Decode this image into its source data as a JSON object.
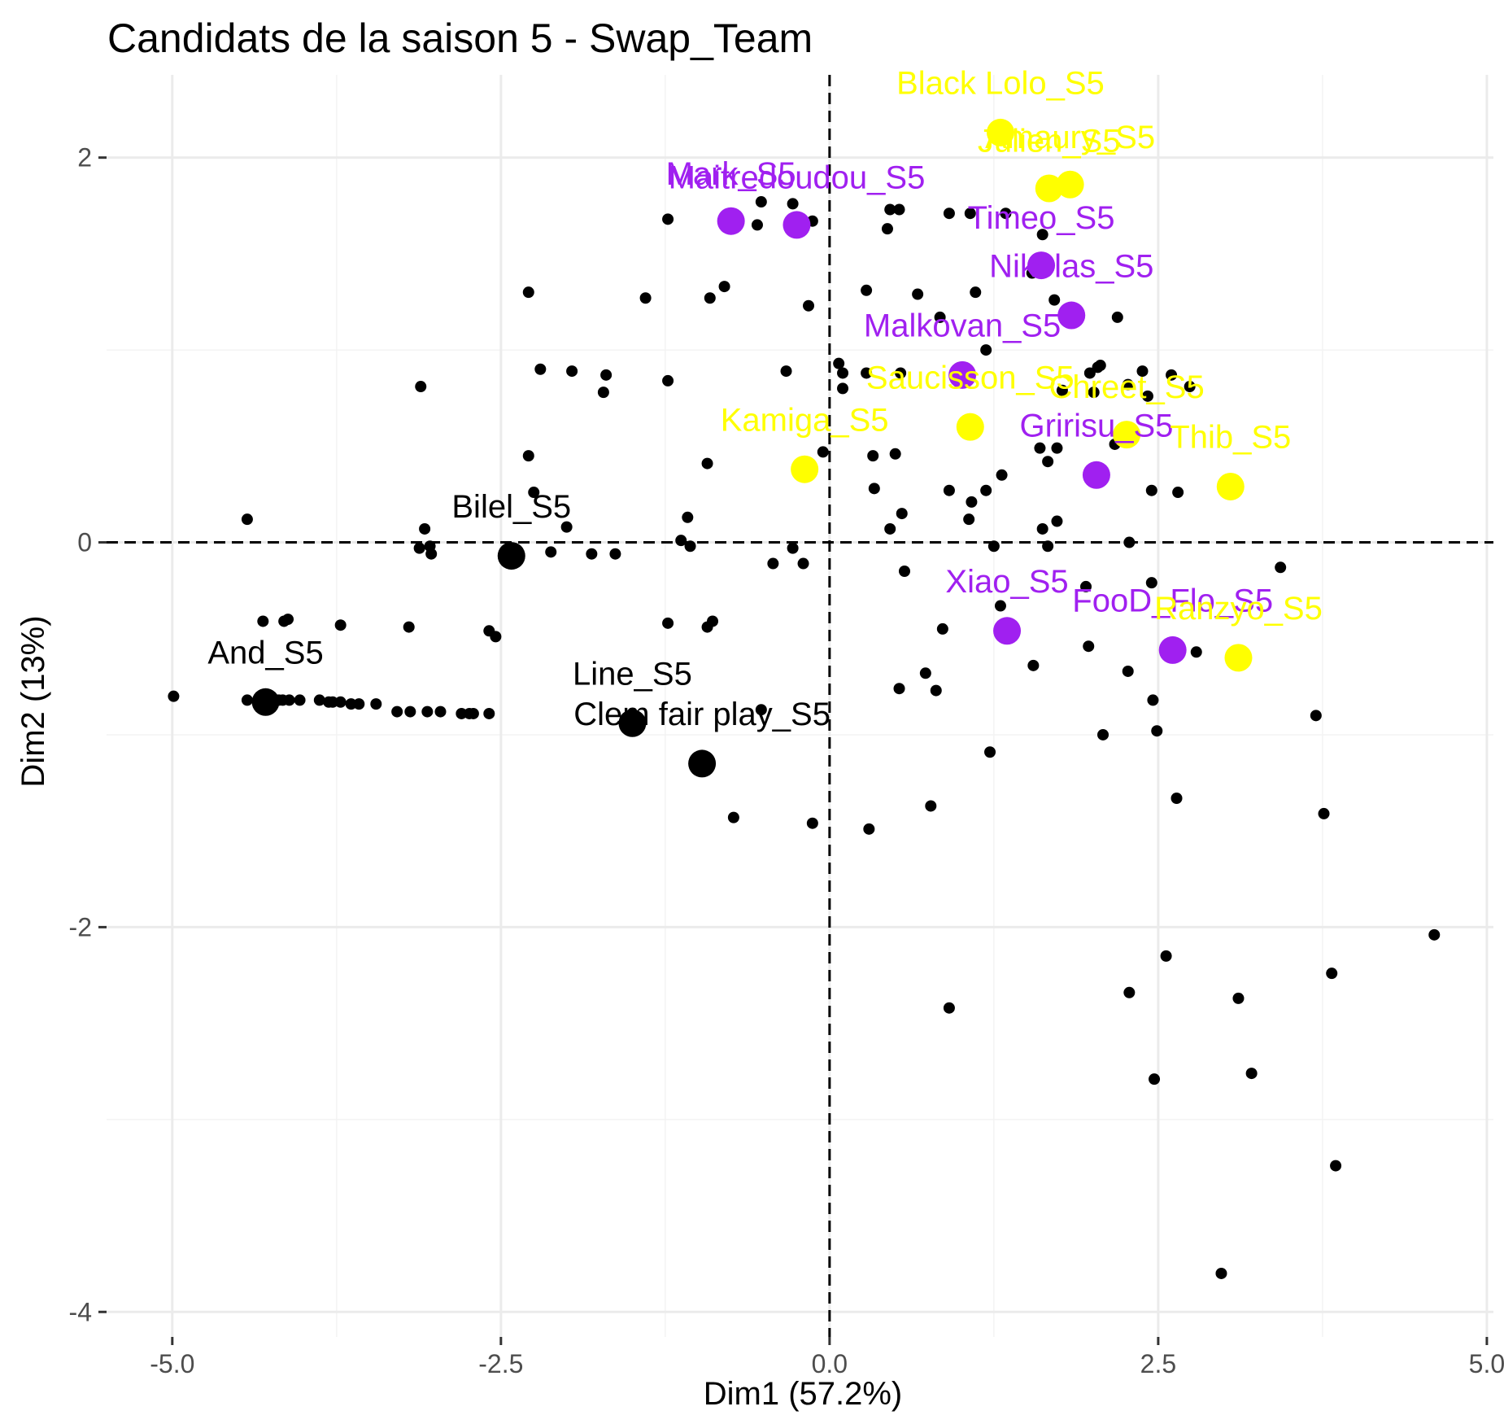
{
  "chart_data": {
    "type": "scatter",
    "title": "Candidats de la saison 5 - Swap_Team",
    "xlabel": "Dim1 (57.2%)",
    "ylabel": "Dim2 (13%)",
    "xlim": [
      -5.5,
      5.05
    ],
    "ylim": [
      -4.13,
      2.43
    ],
    "x_ticks": [
      -5.0,
      -2.5,
      0.0,
      2.5,
      5.0
    ],
    "x_tick_labels": [
      "-5.0",
      "-2.5",
      "0.0",
      "2.5",
      "5.0"
    ],
    "y_ticks": [
      -4,
      -2,
      0,
      2
    ],
    "y_tick_labels": [
      "-4",
      "-2",
      "0",
      "2"
    ],
    "grid": true,
    "zero_lines": "dashed",
    "colors": {
      "black": "#000000",
      "purple": "#a020f0",
      "yellow": "#ffff00"
    },
    "labeled_points": [
      {
        "label": "Black Lolo_S5",
        "x": 1.3,
        "y": 2.13,
        "color": "yellow",
        "lx": 1.3,
        "ly": 2.33
      },
      {
        "label": "Amaury_S5",
        "x": 1.83,
        "y": 1.86,
        "color": "yellow",
        "lx": 1.83,
        "ly": 2.05
      },
      {
        "label": "Julien_S5",
        "x": 1.67,
        "y": 1.84,
        "color": "yellow",
        "lx": 1.67,
        "ly": 2.03
      },
      {
        "label": "Mark_S5",
        "x": -0.75,
        "y": 1.67,
        "color": "purple",
        "lx": -0.75,
        "ly": 1.86
      },
      {
        "label": "Maitredoudou_S5",
        "x": -0.25,
        "y": 1.65,
        "color": "purple",
        "lx": -0.25,
        "ly": 1.84
      },
      {
        "label": "Timeo_S5",
        "x": 1.61,
        "y": 1.44,
        "color": "purple",
        "lx": 1.61,
        "ly": 1.63
      },
      {
        "label": "Nikolas_S5",
        "x": 1.84,
        "y": 1.18,
        "color": "purple",
        "lx": 1.84,
        "ly": 1.38
      },
      {
        "label": "Malkovan_S5",
        "x": 1.01,
        "y": 0.87,
        "color": "purple",
        "lx": 1.01,
        "ly": 1.07
      },
      {
        "label": "Saucisson_S5",
        "x": 1.07,
        "y": 0.6,
        "color": "yellow",
        "lx": 1.07,
        "ly": 0.8
      },
      {
        "label": "Chreet_S5",
        "x": 2.26,
        "y": 0.56,
        "color": "yellow",
        "lx": 2.26,
        "ly": 0.75
      },
      {
        "label": "Kamiga_S5",
        "x": -0.19,
        "y": 0.38,
        "color": "yellow",
        "lx": -0.19,
        "ly": 0.58
      },
      {
        "label": "Gririsu_S5",
        "x": 2.03,
        "y": 0.35,
        "color": "purple",
        "lx": 2.03,
        "ly": 0.55
      },
      {
        "label": "Thib_S5",
        "x": 3.05,
        "y": 0.29,
        "color": "yellow",
        "lx": 3.05,
        "ly": 0.49
      },
      {
        "label": "Bilel_S5",
        "x": -2.42,
        "y": -0.07,
        "color": "black",
        "lx": -2.42,
        "ly": 0.13
      },
      {
        "label": "Xiao_S5",
        "x": 1.35,
        "y": -0.46,
        "color": "purple",
        "lx": 1.35,
        "ly": -0.26
      },
      {
        "label": "FooD_Flo_S5",
        "x": 2.61,
        "y": -0.56,
        "color": "purple",
        "lx": 2.61,
        "ly": -0.36
      },
      {
        "label": "Ranzyo_S5",
        "x": 3.11,
        "y": -0.6,
        "color": "yellow",
        "lx": 3.11,
        "ly": -0.4
      },
      {
        "label": "And_S5",
        "x": -4.29,
        "y": -0.83,
        "color": "black",
        "lx": -4.29,
        "ly": -0.63
      },
      {
        "label": "Line_S5",
        "x": -1.5,
        "y": -0.94,
        "color": "black",
        "lx": -1.5,
        "ly": -0.74
      },
      {
        "label": "Clem fair play_S5",
        "x": -0.97,
        "y": -1.15,
        "color": "black",
        "lx": -0.97,
        "ly": -0.95
      }
    ],
    "points": [
      [
        -4.99,
        -0.8
      ],
      [
        -4.43,
        0.12
      ],
      [
        -4.43,
        -0.82
      ],
      [
        -4.34,
        -0.82
      ],
      [
        -4.19,
        -0.82
      ],
      [
        -4.16,
        -0.82
      ],
      [
        -4.11,
        -0.82
      ],
      [
        -4.03,
        -0.82
      ],
      [
        -3.88,
        -0.82
      ],
      [
        -3.81,
        -0.83
      ],
      [
        -3.78,
        -0.83
      ],
      [
        -3.72,
        -0.83
      ],
      [
        -3.64,
        -0.84
      ],
      [
        -3.58,
        -0.84
      ],
      [
        -3.45,
        -0.84
      ],
      [
        -3.29,
        -0.88
      ],
      [
        -3.19,
        -0.88
      ],
      [
        -3.06,
        -0.88
      ],
      [
        -2.96,
        -0.88
      ],
      [
        -2.8,
        -0.89
      ],
      [
        -2.74,
        -0.89
      ],
      [
        -2.71,
        -0.89
      ],
      [
        -2.59,
        -0.89
      ],
      [
        -4.31,
        -0.41
      ],
      [
        -4.15,
        -0.41
      ],
      [
        -4.12,
        -0.4
      ],
      [
        -3.72,
        -0.43
      ],
      [
        -3.2,
        -0.44
      ],
      [
        -2.59,
        -0.46
      ],
      [
        -2.54,
        -0.49
      ],
      [
        -3.11,
        0.81
      ],
      [
        -3.08,
        0.07
      ],
      [
        -3.12,
        -0.03
      ],
      [
        -3.04,
        -0.02
      ],
      [
        -3.03,
        -0.06
      ],
      [
        -2.29,
        1.3
      ],
      [
        -2.2,
        0.9
      ],
      [
        -2.29,
        0.45
      ],
      [
        -2.25,
        0.26
      ],
      [
        -1.96,
        0.89
      ],
      [
        -1.7,
        0.87
      ],
      [
        -1.72,
        0.78
      ],
      [
        -2.12,
        -0.05
      ],
      [
        -2.0,
        0.08
      ],
      [
        -1.81,
        -0.06
      ],
      [
        -1.63,
        -0.06
      ],
      [
        -1.4,
        1.27
      ],
      [
        -1.23,
        1.68
      ],
      [
        -1.23,
        0.84
      ],
      [
        -1.13,
        0.01
      ],
      [
        -1.08,
        0.13
      ],
      [
        -1.06,
        -0.02
      ],
      [
        -1.23,
        -0.42
      ],
      [
        -0.93,
        -0.44
      ],
      [
        -0.89,
        -0.41
      ],
      [
        -0.93,
        0.41
      ],
      [
        -0.91,
        1.27
      ],
      [
        -0.8,
        1.33
      ],
      [
        -0.55,
        1.65
      ],
      [
        -0.52,
        1.77
      ],
      [
        -0.28,
        1.76
      ],
      [
        -0.52,
        -0.87
      ],
      [
        -0.73,
        -1.43
      ],
      [
        -0.43,
        -0.11
      ],
      [
        -0.28,
        -0.03
      ],
      [
        -0.2,
        -0.11
      ],
      [
        -0.33,
        0.89
      ],
      [
        -0.16,
        1.23
      ],
      [
        -0.13,
        1.67
      ],
      [
        -0.13,
        -1.46
      ],
      [
        -0.05,
        0.47
      ],
      [
        0.07,
        0.93
      ],
      [
        0.1,
        0.88
      ],
      [
        0.1,
        0.8
      ],
      [
        0.28,
        0.88
      ],
      [
        0.54,
        0.88
      ],
      [
        0.28,
        1.31
      ],
      [
        0.67,
        1.29
      ],
      [
        0.46,
        1.73
      ],
      [
        0.53,
        1.73
      ],
      [
        0.44,
        1.63
      ],
      [
        0.91,
        1.71
      ],
      [
        1.07,
        1.71
      ],
      [
        1.11,
        1.3
      ],
      [
        1.19,
        1.0
      ],
      [
        0.84,
        1.17
      ],
      [
        0.33,
        0.45
      ],
      [
        0.5,
        0.46
      ],
      [
        0.46,
        0.07
      ],
      [
        0.55,
        0.15
      ],
      [
        0.34,
        0.28
      ],
      [
        0.57,
        -0.15
      ],
      [
        0.53,
        -0.76
      ],
      [
        0.73,
        -0.68
      ],
      [
        0.81,
        -0.77
      ],
      [
        0.86,
        -0.45
      ],
      [
        0.77,
        -1.37
      ],
      [
        0.3,
        -1.49
      ],
      [
        0.91,
        -2.42
      ],
      [
        0.91,
        0.27
      ],
      [
        1.06,
        0.12
      ],
      [
        1.08,
        0.21
      ],
      [
        1.19,
        0.27
      ],
      [
        1.31,
        0.35
      ],
      [
        1.25,
        -0.02
      ],
      [
        1.3,
        -0.33
      ],
      [
        1.22,
        -1.09
      ],
      [
        1.55,
        -0.64
      ],
      [
        1.6,
        0.49
      ],
      [
        1.73,
        0.49
      ],
      [
        1.66,
        0.42
      ],
      [
        1.62,
        0.07
      ],
      [
        1.73,
        0.11
      ],
      [
        1.66,
        -0.02
      ],
      [
        1.71,
        1.26
      ],
      [
        1.77,
        0.79
      ],
      [
        2.01,
        0.78
      ],
      [
        1.98,
        0.88
      ],
      [
        2.04,
        0.91
      ],
      [
        2.06,
        0.92
      ],
      [
        2.19,
        1.17
      ],
      [
        2.27,
        0.82
      ],
      [
        2.42,
        0.76
      ],
      [
        2.38,
        0.89
      ],
      [
        2.6,
        0.87
      ],
      [
        2.74,
        0.81
      ],
      [
        2.17,
        0.51
      ],
      [
        2.45,
        0.27
      ],
      [
        2.65,
        0.26
      ],
      [
        2.28,
        0.0
      ],
      [
        1.95,
        -0.23
      ],
      [
        2.45,
        -0.21
      ],
      [
        1.97,
        -0.54
      ],
      [
        2.27,
        -0.67
      ],
      [
        2.46,
        -0.82
      ],
      [
        2.49,
        -0.98
      ],
      [
        2.08,
        -1.0
      ],
      [
        2.64,
        -1.33
      ],
      [
        2.79,
        -0.57
      ],
      [
        3.43,
        -0.13
      ],
      [
        3.7,
        -0.9
      ],
      [
        3.76,
        -1.41
      ],
      [
        3.82,
        -2.24
      ],
      [
        3.85,
        -3.24
      ],
      [
        3.11,
        -2.37
      ],
      [
        3.21,
        -2.76
      ],
      [
        2.98,
        -3.8
      ],
      [
        2.28,
        -2.34
      ],
      [
        2.47,
        -2.79
      ],
      [
        2.56,
        -2.15
      ],
      [
        4.6,
        -2.04
      ],
      [
        1.34,
        1.71
      ],
      [
        1.54,
        1.4
      ],
      [
        1.62,
        1.6
      ]
    ]
  }
}
